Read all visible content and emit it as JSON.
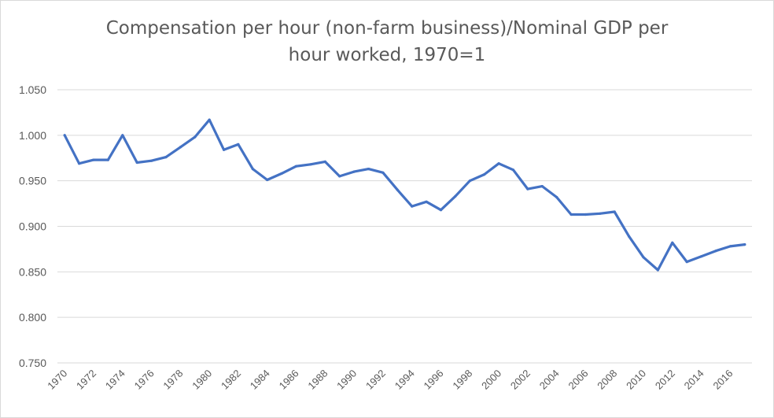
{
  "chart_data": {
    "type": "line",
    "title_line1": "Compensation per hour (non-farm business)/Nominal GDP per",
    "title_line2": "hour worked, 1970=1",
    "xlabel": "",
    "ylabel": "",
    "ylim": [
      0.75,
      1.05
    ],
    "yticks": [
      "1.050",
      "1.000",
      "0.950",
      "0.900",
      "0.850",
      "0.800",
      "0.750"
    ],
    "ytick_values": [
      1.05,
      1.0,
      0.95,
      0.9,
      0.85,
      0.8,
      0.75
    ],
    "xtick_labels": [
      "1970",
      "1972",
      "1974",
      "1976",
      "1978",
      "1980",
      "1982",
      "1984",
      "1986",
      "1988",
      "1990",
      "1992",
      "1994",
      "1996",
      "1998",
      "2000",
      "2002",
      "2004",
      "2006",
      "2008",
      "2010",
      "2012",
      "2014",
      "2016"
    ],
    "grid": true,
    "legend": "none",
    "series": [
      {
        "color": "#4472c4",
        "x": [
          1970,
          1971,
          1972,
          1973,
          1974,
          1975,
          1976,
          1977,
          1978,
          1979,
          1980,
          1981,
          1982,
          1983,
          1984,
          1985,
          1986,
          1987,
          1988,
          1989,
          1990,
          1991,
          1992,
          1993,
          1994,
          1995,
          1996,
          1997,
          1998,
          1999,
          2000,
          2001,
          2002,
          2003,
          2004,
          2005,
          2006,
          2007,
          2008,
          2009,
          2010,
          2011,
          2012,
          2013,
          2014,
          2015,
          2016,
          2017
        ],
        "values": [
          1.0,
          0.969,
          0.973,
          0.973,
          1.0,
          0.97,
          0.972,
          0.976,
          0.987,
          0.998,
          1.017,
          0.984,
          0.99,
          0.963,
          0.951,
          0.958,
          0.966,
          0.968,
          0.971,
          0.955,
          0.96,
          0.963,
          0.959,
          0.94,
          0.922,
          0.927,
          0.918,
          0.933,
          0.95,
          0.957,
          0.969,
          0.962,
          0.941,
          0.944,
          0.932,
          0.913,
          0.913,
          0.914,
          0.916,
          0.889,
          0.866,
          0.852,
          0.882,
          0.861,
          0.867,
          0.873,
          0.878,
          0.88
        ]
      }
    ]
  }
}
